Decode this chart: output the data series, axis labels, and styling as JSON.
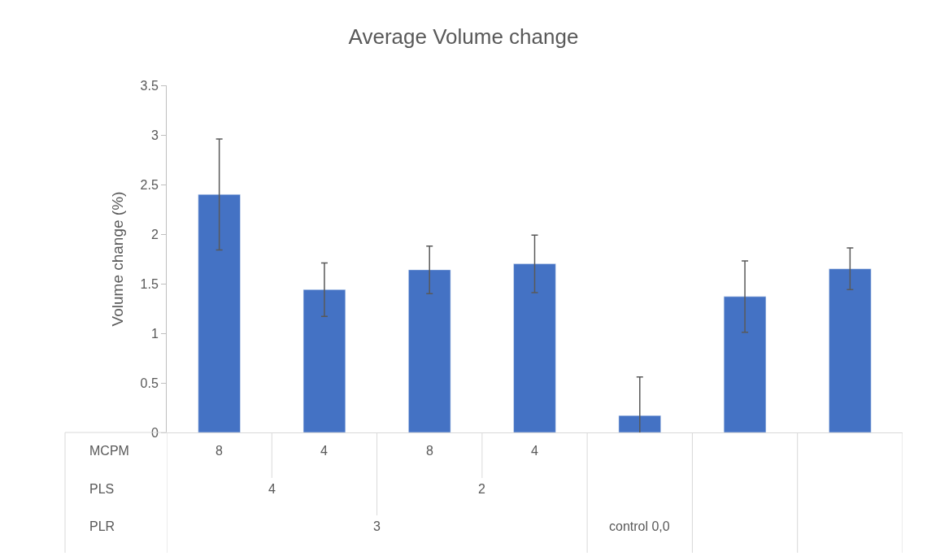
{
  "chart_data": {
    "type": "bar",
    "title": "Average Volume change",
    "ylabel": "Volume change (%)",
    "categories": [
      "8",
      "4",
      "8",
      "4",
      null,
      null,
      null
    ],
    "values": [
      2.4,
      1.44,
      1.64,
      1.7,
      0.17,
      1.37,
      1.65
    ],
    "errors": [
      0.56,
      0.27,
      0.24,
      0.29,
      0.39,
      0.36,
      0.21
    ],
    "color": "#4472c4",
    "annotations": [
      "MCPM",
      "PLS",
      "4",
      "2",
      "PLR",
      "3",
      "control 0,0"
    ],
    "ylim": [
      0,
      3.5
    ],
    "yticks": [
      0,
      0.5,
      1,
      1.5,
      2,
      2.5,
      3,
      3.5
    ],
    "grid": false,
    "legend": false
  }
}
